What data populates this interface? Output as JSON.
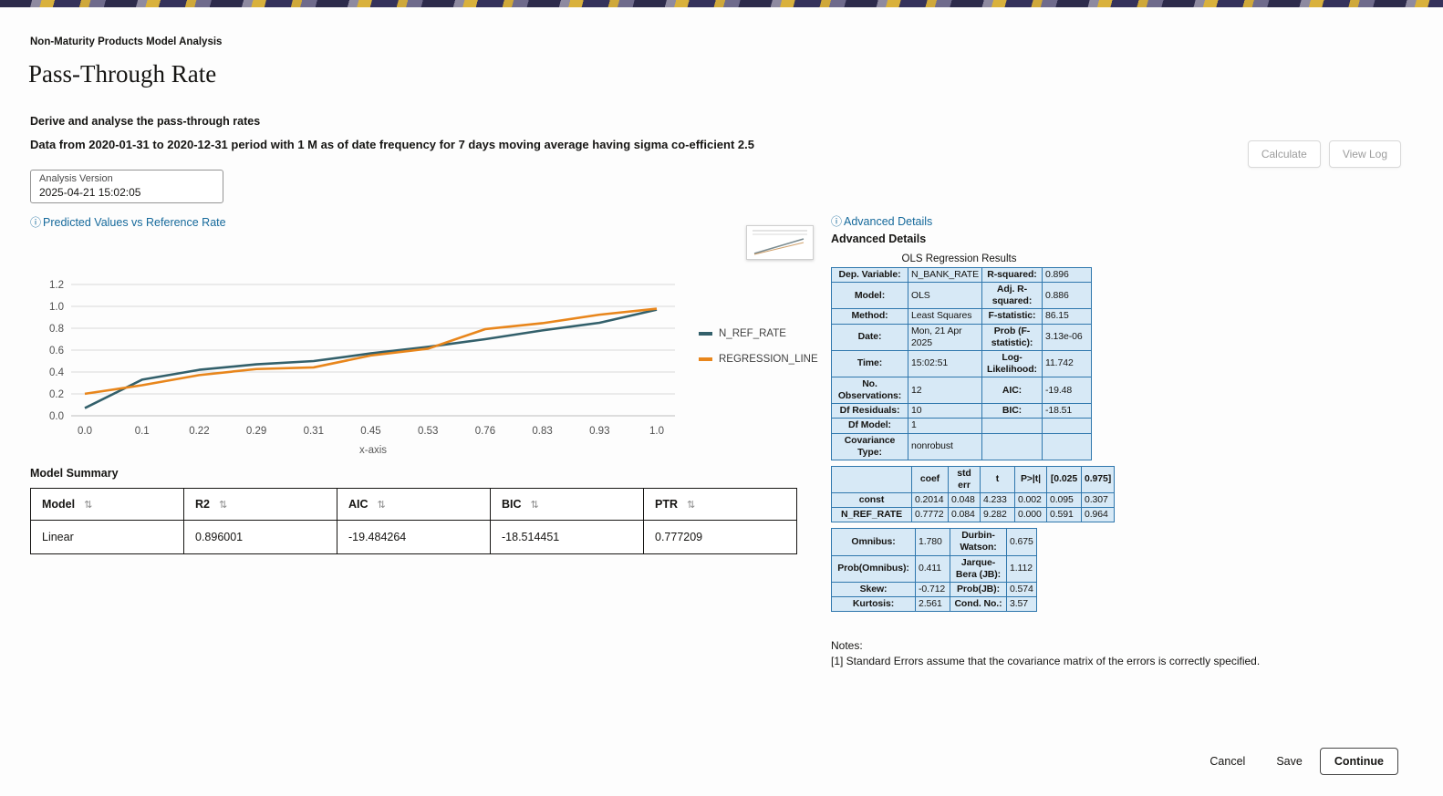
{
  "icons": {
    "info": "ⓘ",
    "sort": "⇅"
  },
  "header": {
    "breadcrumb": "Non-Maturity Products Model Analysis",
    "title": "Pass-Through Rate",
    "subtitle": "Derive and analyse the pass-through rates",
    "description": "Data from 2020-01-31 to 2020-12-31 period with 1 M as of date frequency for 7 days moving average having sigma co-efficient 2.5",
    "calculate_label": "Calculate",
    "view_log_label": "View Log"
  },
  "analysis_version": {
    "label": "Analysis Version",
    "value": "2025-04-21 15:02:05"
  },
  "chart_section": {
    "link_label": "Predicted Values vs Reference Rate"
  },
  "chart_data": {
    "type": "line",
    "title": "Predicted Values vs Reference Rate",
    "xlabel": "x-axis",
    "ylabel": "",
    "categories": [
      "0.0",
      "0.1",
      "0.22",
      "0.29",
      "0.31",
      "0.45",
      "0.53",
      "0.76",
      "0.83",
      "0.93",
      "1.0"
    ],
    "y_ticks": [
      0.0,
      0.2,
      0.4,
      0.6,
      0.8,
      1.0,
      1.2
    ],
    "ylim": [
      0,
      1.2
    ],
    "grid": true,
    "legend_position": "right",
    "series": [
      {
        "name": "N_REF_RATE",
        "color": "#33606b",
        "values": [
          0.07,
          0.33,
          0.42,
          0.47,
          0.5,
          0.57,
          0.63,
          0.7,
          0.78,
          0.85,
          0.97
        ]
      },
      {
        "name": "REGRESSION_LINE",
        "color": "#e8861c",
        "values": [
          0.201,
          0.279,
          0.372,
          0.427,
          0.442,
          0.551,
          0.613,
          0.792,
          0.846,
          0.924,
          0.979
        ]
      }
    ]
  },
  "model_summary": {
    "title": "Model Summary",
    "columns": [
      "Model",
      "R2",
      "AIC",
      "BIC",
      "PTR"
    ],
    "rows": [
      [
        "Linear",
        "0.896001",
        "-19.484264",
        "-18.514451",
        "0.777209"
      ]
    ]
  },
  "advanced": {
    "link_label": "Advanced Details",
    "heading": "Advanced Details",
    "ols_title": "OLS Regression Results",
    "ols_rows": [
      [
        "Dep. Variable:",
        "N_BANK_RATE",
        "R-squared:",
        "0.896"
      ],
      [
        "Model:",
        "OLS",
        "Adj. R-squared:",
        "0.886"
      ],
      [
        "Method:",
        "Least Squares",
        "F-statistic:",
        "86.15"
      ],
      [
        "Date:",
        "Mon, 21 Apr 2025",
        "Prob (F-statistic):",
        "3.13e-06"
      ],
      [
        "Time:",
        "15:02:51",
        "Log-Likelihood:",
        "11.742"
      ],
      [
        "No. Observations:",
        "12",
        "AIC:",
        "-19.48"
      ],
      [
        "Df Residuals:",
        "10",
        "BIC:",
        "-18.51"
      ],
      [
        "Df Model:",
        "1",
        "",
        ""
      ],
      [
        "Covariance Type:",
        "nonrobust",
        "",
        ""
      ]
    ],
    "coef_table": {
      "headers": [
        "",
        "coef",
        "std err",
        "t",
        "P>|t|",
        "[0.025",
        "0.975]"
      ],
      "rows": [
        [
          "const",
          "0.2014",
          "0.048",
          "4.233",
          "0.002",
          "0.095",
          "0.307"
        ],
        [
          "N_REF_RATE",
          "0.7772",
          "0.084",
          "9.282",
          "0.000",
          "0.591",
          "0.964"
        ]
      ]
    },
    "diag_rows": [
      [
        "Omnibus:",
        "1.780",
        "Durbin-Watson:",
        "0.675"
      ],
      [
        "Prob(Omnibus):",
        "0.411",
        "Jarque-Bera (JB):",
        "1.112"
      ],
      [
        "Skew:",
        "-0.712",
        "Prob(JB):",
        "0.574"
      ],
      [
        "Kurtosis:",
        "2.561",
        "Cond. No.:",
        "3.57"
      ]
    ],
    "notes_title": "Notes:",
    "notes": "[1] Standard Errors assume that the covariance matrix of the errors is correctly specified."
  },
  "footer": {
    "cancel_label": "Cancel",
    "save_label": "Save",
    "continue_label": "Continue"
  }
}
